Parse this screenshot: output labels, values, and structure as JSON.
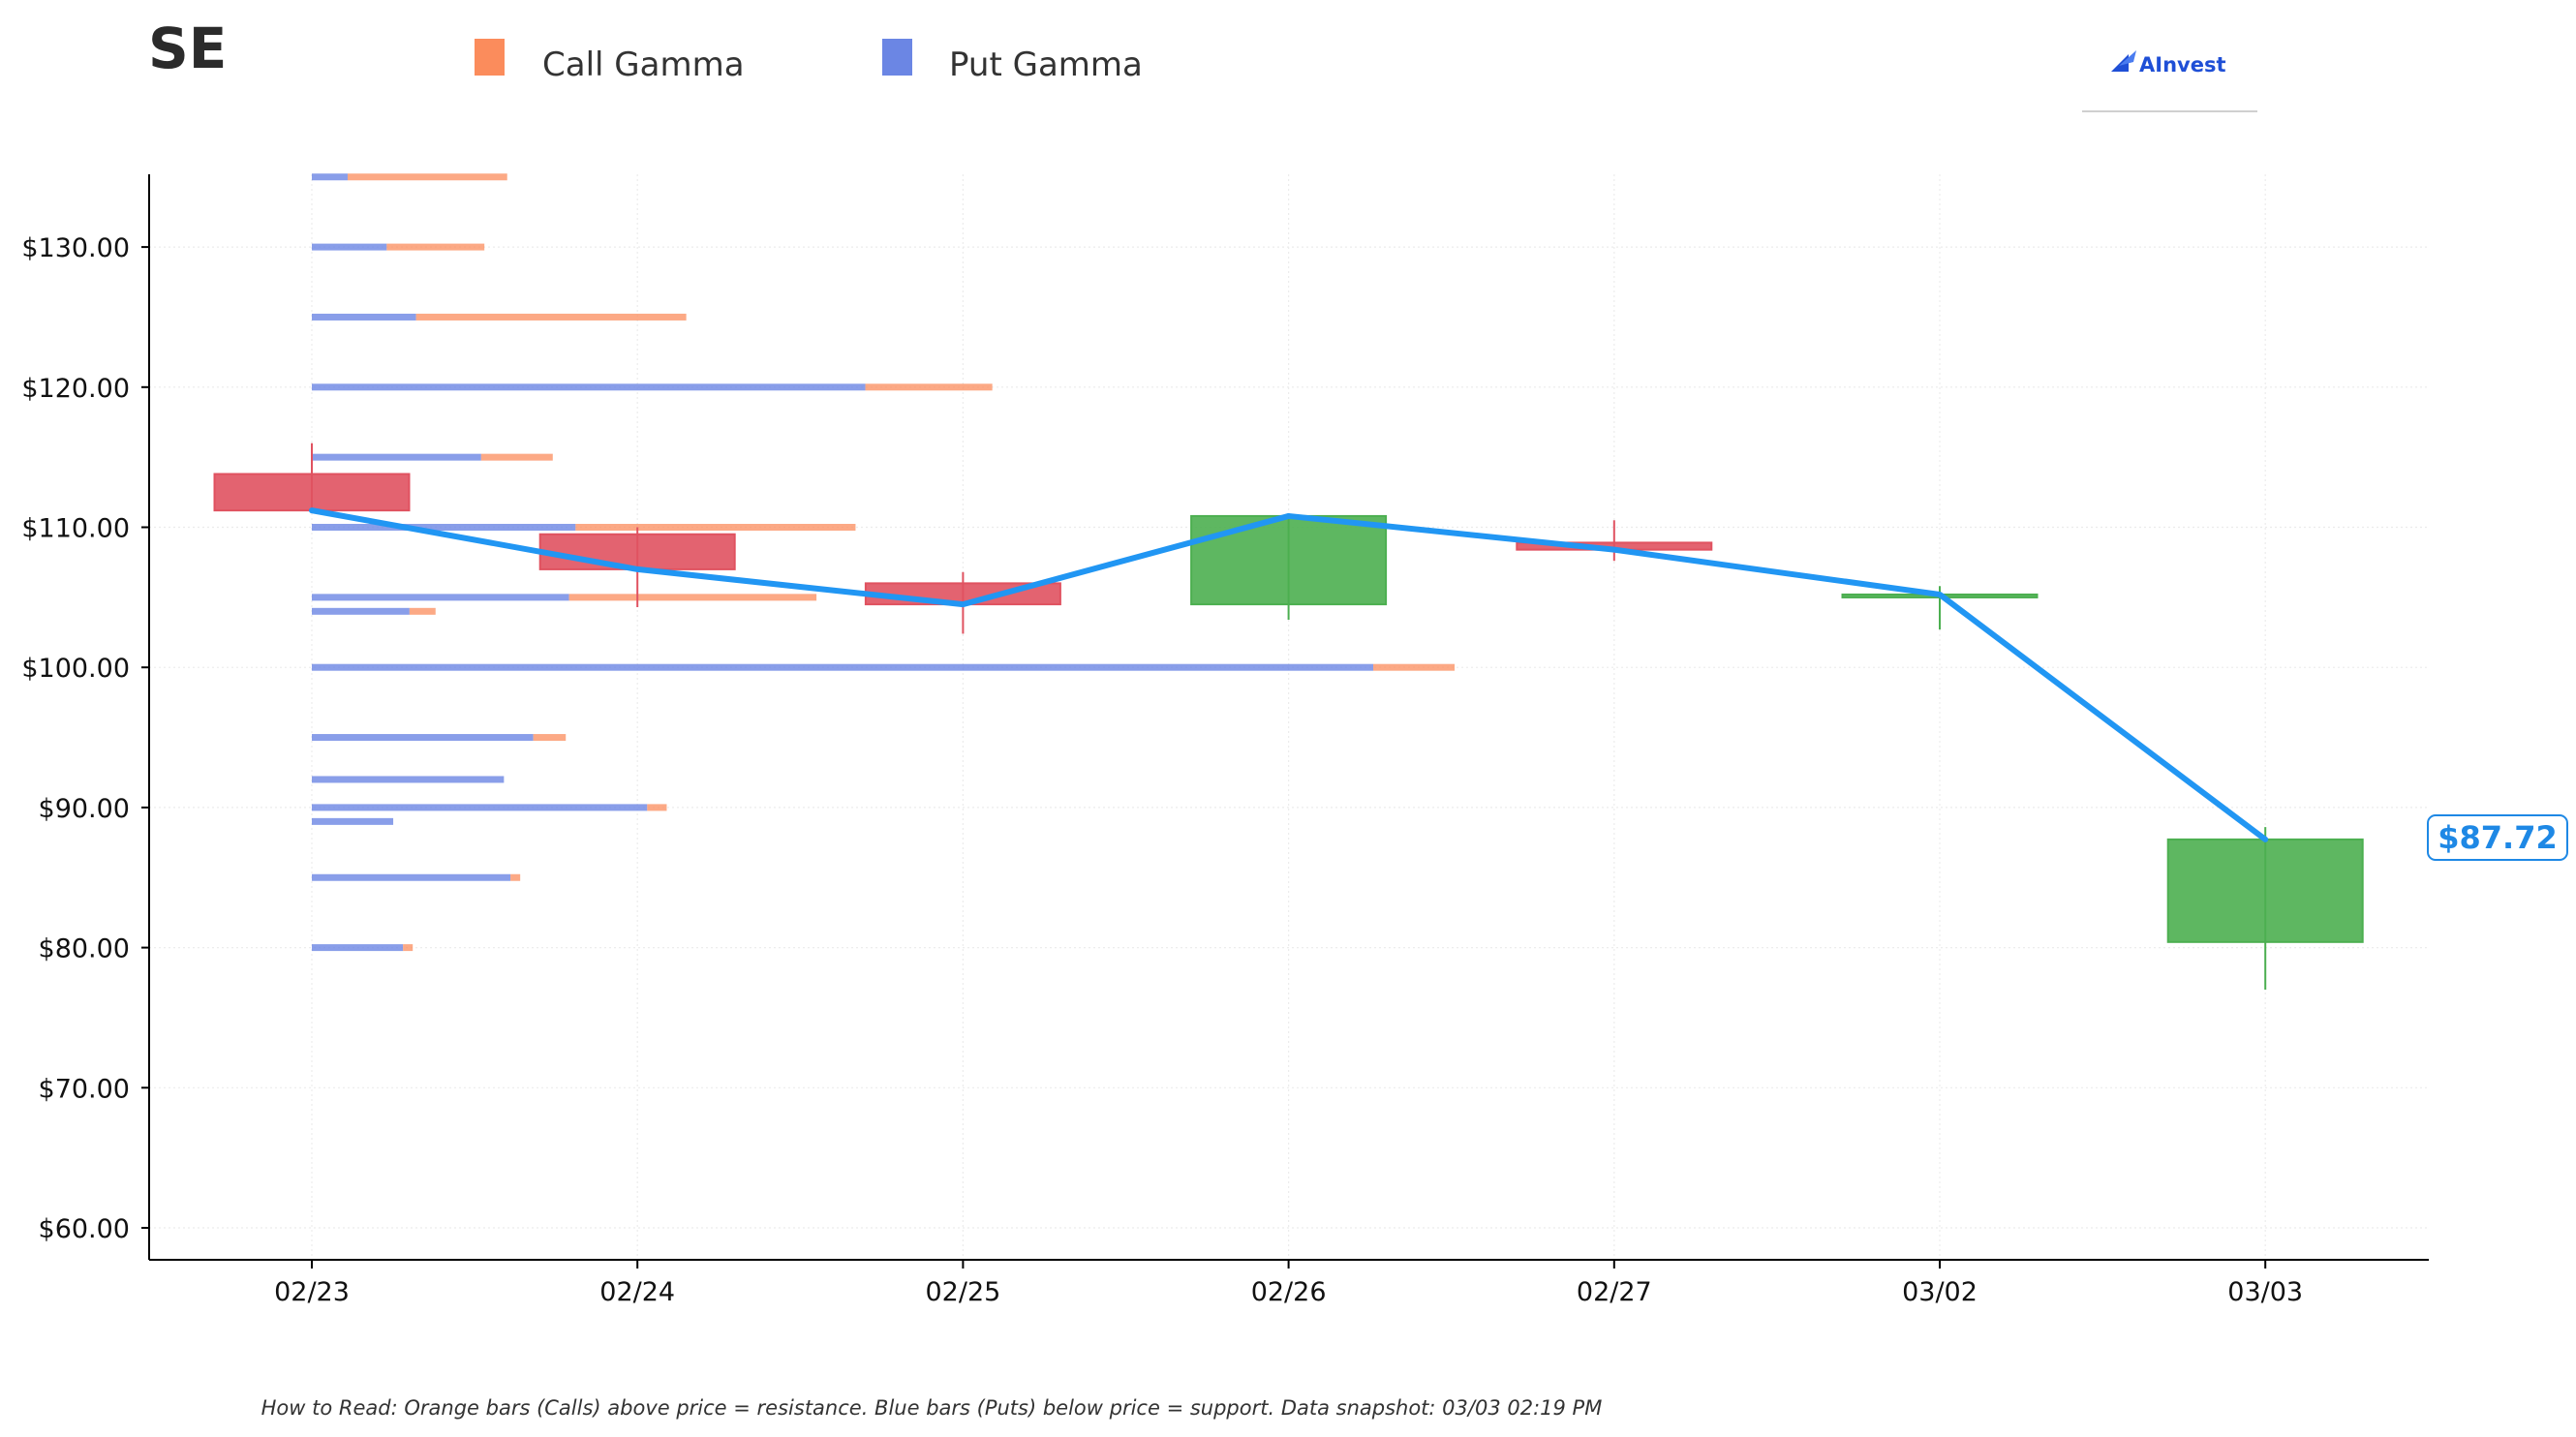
{
  "header": {
    "ticker": "SE",
    "brand": "AInvest"
  },
  "legend": [
    {
      "label": "Call Gamma",
      "color": "#fb8c5c"
    },
    {
      "label": "Put Gamma",
      "color": "#6b86e4"
    }
  ],
  "footnote": "How to Read: Orange bars (Calls) above price = resistance. Blue bars (Puts) below price = support. Data snapshot: 03/03 02:19 PM",
  "current_price": {
    "label": "$87.72",
    "value": 87.72,
    "color": "#1e88e5"
  },
  "chart_data": {
    "type": "candlestick",
    "x_tick_labels": [
      "02/23",
      "02/24",
      "02/25",
      "02/26",
      "02/27",
      "03/02",
      "03/03"
    ],
    "y_ticks": [
      60,
      70,
      80,
      90,
      100,
      110,
      120,
      130
    ],
    "y_tick_labels": [
      "$60.00",
      "$70.00",
      "$80.00",
      "$90.00",
      "$100.00",
      "$110.00",
      "$120.00",
      "$130.00"
    ],
    "ylim": [
      57.5,
      135.3
    ],
    "grid": true,
    "legend_position": "top",
    "colors": {
      "up": "#4caf50",
      "down": "#e05260",
      "close_line": "#2196f3"
    },
    "candles": [
      {
        "date": "02/23",
        "open": 113.8,
        "high": 116.0,
        "low": 111.0,
        "close": 111.2
      },
      {
        "date": "02/24",
        "open": 109.5,
        "high": 110.0,
        "low": 104.3,
        "close": 107.0
      },
      {
        "date": "02/25",
        "open": 106.0,
        "high": 106.8,
        "low": 102.4,
        "close": 104.5
      },
      {
        "date": "02/26",
        "open": 104.5,
        "high": 111.0,
        "low": 103.4,
        "close": 110.8
      },
      {
        "date": "02/27",
        "open": 108.9,
        "high": 110.5,
        "low": 107.6,
        "close": 108.4
      },
      {
        "date": "03/02",
        "open": 105.0,
        "high": 105.8,
        "low": 102.7,
        "close": 105.2
      },
      {
        "date": "03/03",
        "open": 80.4,
        "high": 88.6,
        "low": 77.0,
        "close": 87.72
      }
    ],
    "close_line": [
      111.2,
      107.0,
      104.5,
      110.8,
      108.4,
      105.2,
      87.72
    ],
    "gamma_bars_note": "bar lengths expressed in x-axis (trading-day) units starting at 02/23",
    "gamma_bars": [
      {
        "strike": 135,
        "put": 0.11,
        "call": 0.49
      },
      {
        "strike": 130,
        "put": 0.23,
        "call": 0.3
      },
      {
        "strike": 125,
        "put": 0.32,
        "call": 0.83
      },
      {
        "strike": 120,
        "put": 1.7,
        "call": 0.39
      },
      {
        "strike": 115,
        "put": 0.52,
        "call": 0.22
      },
      {
        "strike": 110,
        "put": 0.81,
        "call": 0.86
      },
      {
        "strike": 105,
        "put": 0.79,
        "call": 0.76
      },
      {
        "strike": 104,
        "put": 0.3,
        "call": 0.08
      },
      {
        "strike": 100,
        "put": 3.26,
        "call": 0.25
      },
      {
        "strike": 95,
        "put": 0.68,
        "call": 0.1
      },
      {
        "strike": 92,
        "put": 0.59,
        "call": 0.0
      },
      {
        "strike": 90,
        "put": 1.03,
        "call": 0.06
      },
      {
        "strike": 89,
        "put": 0.25,
        "call": 0.0
      },
      {
        "strike": 85,
        "put": 0.61,
        "call": 0.03
      },
      {
        "strike": 80,
        "put": 0.28,
        "call": 0.03
      }
    ]
  }
}
